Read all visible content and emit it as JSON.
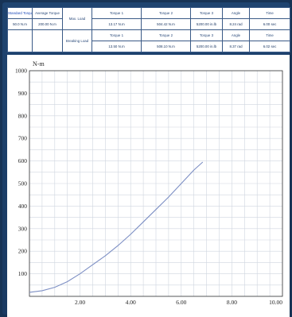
{
  "table": {
    "row1": [
      "Standard Torque",
      "Average Torque",
      "Max. Load",
      "Torque 1",
      "Torque 2",
      "Torque 3",
      "Angle",
      "Time"
    ],
    "row1b": [
      "50.0 N.m",
      "200.00 N.m",
      "",
      "13.17 N.m",
      "504.42 N.m",
      "5200.00 in.lb",
      "8.24 rad",
      "6.00 sec"
    ],
    "row2": [
      "",
      "",
      "Breaking Load",
      "Torque 1",
      "Torque 2",
      "Torque 3",
      "Angle",
      "Time"
    ],
    "row2b": [
      "",
      "",
      "",
      "13.50 N.m",
      "508.10 N.m",
      "5200.00 in.lb",
      "8.37 rad",
      "6.02 sec"
    ]
  },
  "chart_data": {
    "type": "line",
    "title": "",
    "ylabel": "N-m",
    "xlabel": "",
    "xlim": [
      0,
      10
    ],
    "ylim": [
      0,
      1000
    ],
    "xticks": [
      "2.00",
      "4.00",
      "6.00",
      "8.00",
      "10.00"
    ],
    "yticks": [
      "100",
      "200",
      "300",
      "400",
      "500",
      "600",
      "700",
      "800",
      "900",
      "1000"
    ],
    "grid": true,
    "series": [
      {
        "color": "#7d8fc4",
        "x": [
          0.0,
          0.5,
          1.0,
          1.5,
          2.0,
          2.5,
          3.0,
          3.5,
          4.0,
          4.5,
          5.0,
          5.5,
          6.0,
          6.5,
          6.85
        ],
        "y": [
          18,
          25,
          40,
          65,
          100,
          140,
          180,
          225,
          275,
          330,
          385,
          440,
          500,
          560,
          595
        ]
      }
    ]
  }
}
